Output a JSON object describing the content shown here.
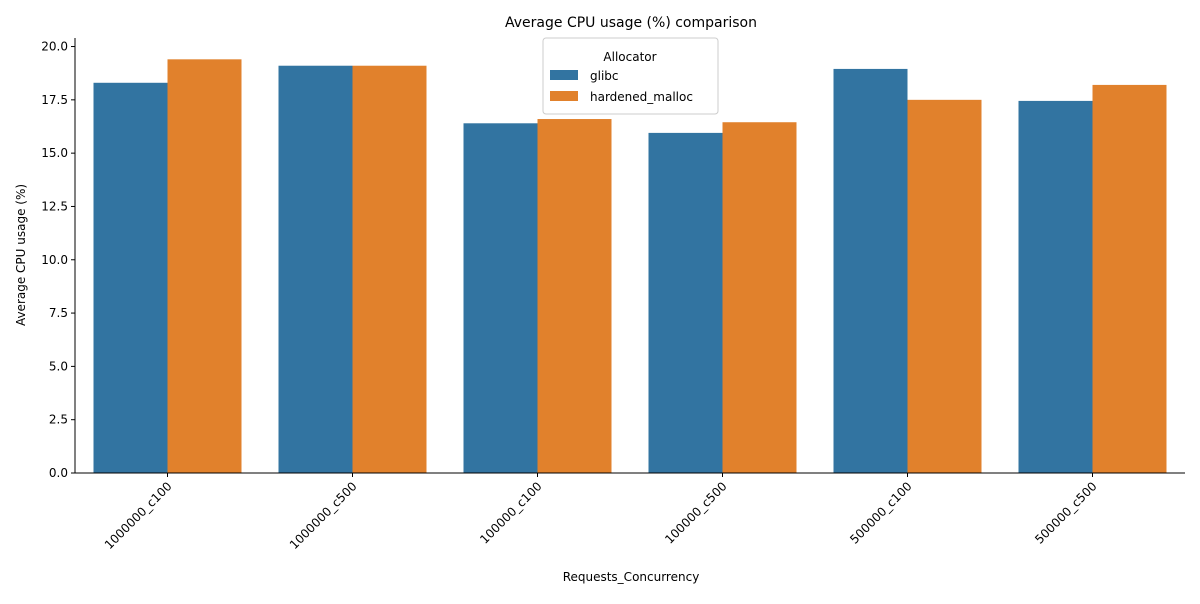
{
  "chart_data": {
    "type": "bar",
    "title": "Average CPU usage (%) comparison",
    "xlabel": "Requests_Concurrency",
    "ylabel": "Average CPU usage (%)",
    "categories": [
      "1000000_c100",
      "1000000_c500",
      "100000_c100",
      "100000_c500",
      "500000_c100",
      "500000_c500"
    ],
    "series": [
      {
        "name": "glibc",
        "color": "#3274a1",
        "values": [
          18.3,
          19.1,
          16.4,
          15.95,
          18.95,
          17.45
        ]
      },
      {
        "name": "hardened_malloc",
        "color": "#e1812c",
        "values": [
          19.4,
          19.1,
          16.6,
          16.45,
          17.5,
          18.2
        ]
      }
    ],
    "ylim": [
      0,
      20.4
    ],
    "yticks": [
      "0.0",
      "2.5",
      "5.0",
      "7.5",
      "10.0",
      "12.5",
      "15.0",
      "17.5",
      "20.0"
    ],
    "legend": {
      "title": "Allocator",
      "placement": "top-center"
    },
    "grid": false
  }
}
